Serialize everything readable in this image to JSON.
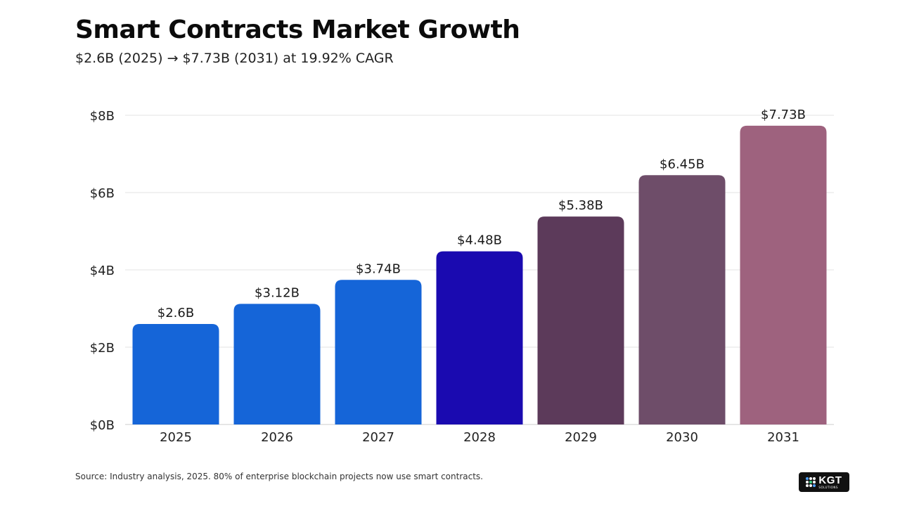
{
  "header": {
    "title": "Smart Contracts Market Growth",
    "subtitle": "$2.6B (2025) → $7.73B (2031) at 19.92% CAGR"
  },
  "chart_data": {
    "type": "bar",
    "title": "Smart Contracts Market Growth",
    "subtitle": "$2.6B (2025) → $7.73B (2031) at 19.92% CAGR",
    "categories": [
      "2025",
      "2026",
      "2027",
      "2028",
      "2029",
      "2030",
      "2031"
    ],
    "values": [
      2.6,
      3.12,
      3.74,
      4.48,
      5.38,
      6.45,
      7.73
    ],
    "data_labels": [
      "$2.6B",
      "$3.12B",
      "$3.74B",
      "$4.48B",
      "$5.38B",
      "$6.45B",
      "$7.73B"
    ],
    "colors": [
      "#1565d8",
      "#1565d8",
      "#1565d8",
      "#1a0ab0",
      "#5c3a5a",
      "#6e4d69",
      "#9e627e"
    ],
    "yticks": [
      0,
      2,
      4,
      6,
      8
    ],
    "ytick_labels": [
      "$0B",
      "$2B",
      "$4B",
      "$6B",
      "$8B"
    ],
    "ylim": [
      0,
      8
    ],
    "xlabel": "",
    "ylabel": "",
    "grid": true,
    "legend": "none"
  },
  "footer": {
    "source": "Source: Industry analysis, 2025. 80% of enterprise blockchain projects now use smart contracts.",
    "logo_text": "KGT",
    "logo_subtext": "SOLUTIONS"
  },
  "colors": {
    "gridline": "#e3e3e3",
    "axis_text": "#222222",
    "baseline": "#cccccc"
  }
}
